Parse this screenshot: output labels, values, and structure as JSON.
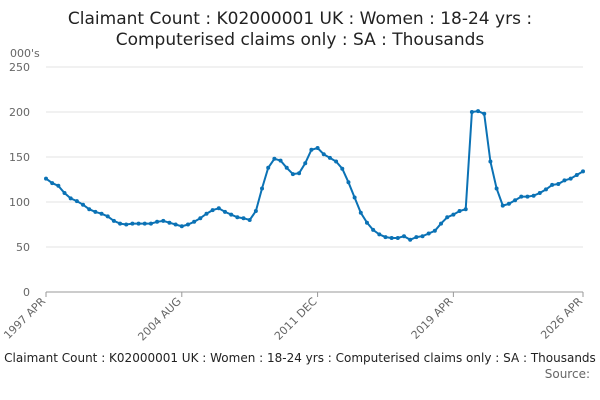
{
  "chart_data": {
    "type": "line",
    "title": [
      "Claimant Count : K02000001 UK : Women : 18-24 yrs :",
      "Computerised claims only : SA : Thousands"
    ],
    "y_label": "000's",
    "caption": "Claimant Count : K02000001 UK : Women : 18-24 yrs : Computerised claims only : SA : Thousands",
    "source": "Source:",
    "categories": [
      "1997 APR",
      null,
      null,
      null,
      null,
      null,
      null,
      null,
      null,
      null,
      null,
      null,
      null,
      null,
      null,
      null,
      null,
      null,
      null,
      null,
      null,
      null,
      "2004 AUG",
      null,
      null,
      null,
      null,
      null,
      null,
      null,
      null,
      null,
      null,
      null,
      null,
      null,
      null,
      null,
      null,
      null,
      null,
      null,
      null,
      null,
      "2011 DEC",
      null,
      null,
      null,
      null,
      null,
      null,
      null,
      null,
      null,
      null,
      null,
      null,
      null,
      null,
      null,
      null,
      null,
      null,
      null,
      null,
      null,
      "2019 APR",
      null,
      null,
      null,
      null,
      null,
      null,
      null,
      null,
      null,
      null,
      null,
      null,
      null,
      null,
      null,
      null,
      null,
      null,
      null,
      null,
      "2026 APR"
    ],
    "series": [
      {
        "color": "#0b72b5",
        "values": [
          126,
          121,
          118,
          110,
          104,
          101,
          97,
          92,
          89,
          87,
          84,
          79,
          76,
          75,
          76,
          76,
          76,
          76,
          78,
          79,
          77,
          75,
          73,
          75,
          78,
          82,
          87,
          91,
          93,
          89,
          86,
          83,
          82,
          80,
          90,
          115,
          138,
          148,
          146,
          138,
          131,
          132,
          143,
          158,
          160,
          153,
          149,
          145,
          137,
          122,
          105,
          88,
          77,
          69,
          64,
          61,
          60,
          60,
          62,
          58,
          61,
          62,
          65,
          68,
          76,
          83,
          86,
          90,
          92,
          200,
          201,
          198,
          145,
          115,
          96,
          98,
          102,
          106,
          106,
          107,
          110,
          114,
          119,
          120,
          124,
          126,
          130,
          134
        ]
      }
    ],
    "ylim": [
      0,
      250
    ],
    "yticks": [
      0,
      50,
      100,
      150,
      200,
      250
    ],
    "grid": true
  }
}
